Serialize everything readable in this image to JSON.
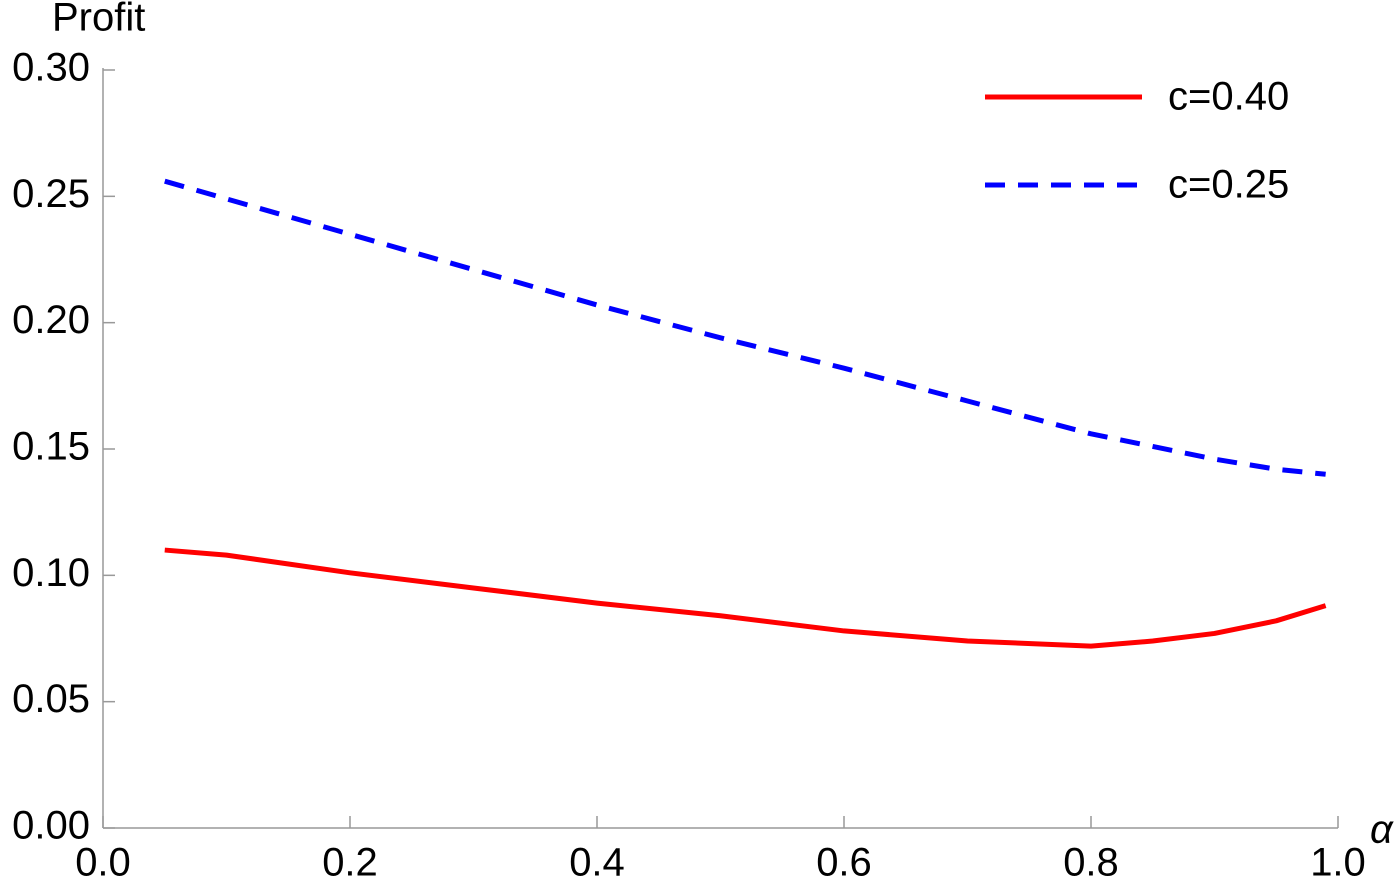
{
  "chart_data": {
    "type": "line",
    "x_label": "α",
    "y_label": "Profit",
    "x": [
      0.05,
      0.1,
      0.2,
      0.3,
      0.4,
      0.5,
      0.6,
      0.7,
      0.8,
      0.85,
      0.9,
      0.95,
      0.99
    ],
    "series": [
      {
        "name": "c=0.40",
        "color": "#ff0000",
        "style": "solid",
        "values": [
          0.11,
          0.108,
          0.101,
          0.095,
          0.089,
          0.084,
          0.078,
          0.074,
          0.072,
          0.074,
          0.077,
          0.082,
          0.088
        ]
      },
      {
        "name": "c=0.25",
        "color": "#0000ff",
        "style": "dashed",
        "values": [
          0.256,
          0.249,
          0.235,
          0.221,
          0.207,
          0.194,
          0.182,
          0.169,
          0.156,
          0.151,
          0.146,
          0.142,
          0.14
        ]
      }
    ],
    "xlim": [
      0,
      1
    ],
    "ylim": [
      0,
      0.3
    ],
    "xticks": [
      {
        "value": 0,
        "label": "0.0"
      },
      0.2,
      0.4,
      0.6,
      0.8,
      {
        "value": 1,
        "label": "1.0"
      }
    ],
    "yticks": [
      {
        "value": 0,
        "label": "0.00"
      },
      0.05,
      {
        "value": 0.1,
        "label": "0.10"
      },
      0.15,
      {
        "value": 0.2,
        "label": "0.20"
      },
      0.25,
      {
        "value": 0.3,
        "label": "0.30"
      }
    ],
    "legend": "top-right",
    "grid": false
  }
}
